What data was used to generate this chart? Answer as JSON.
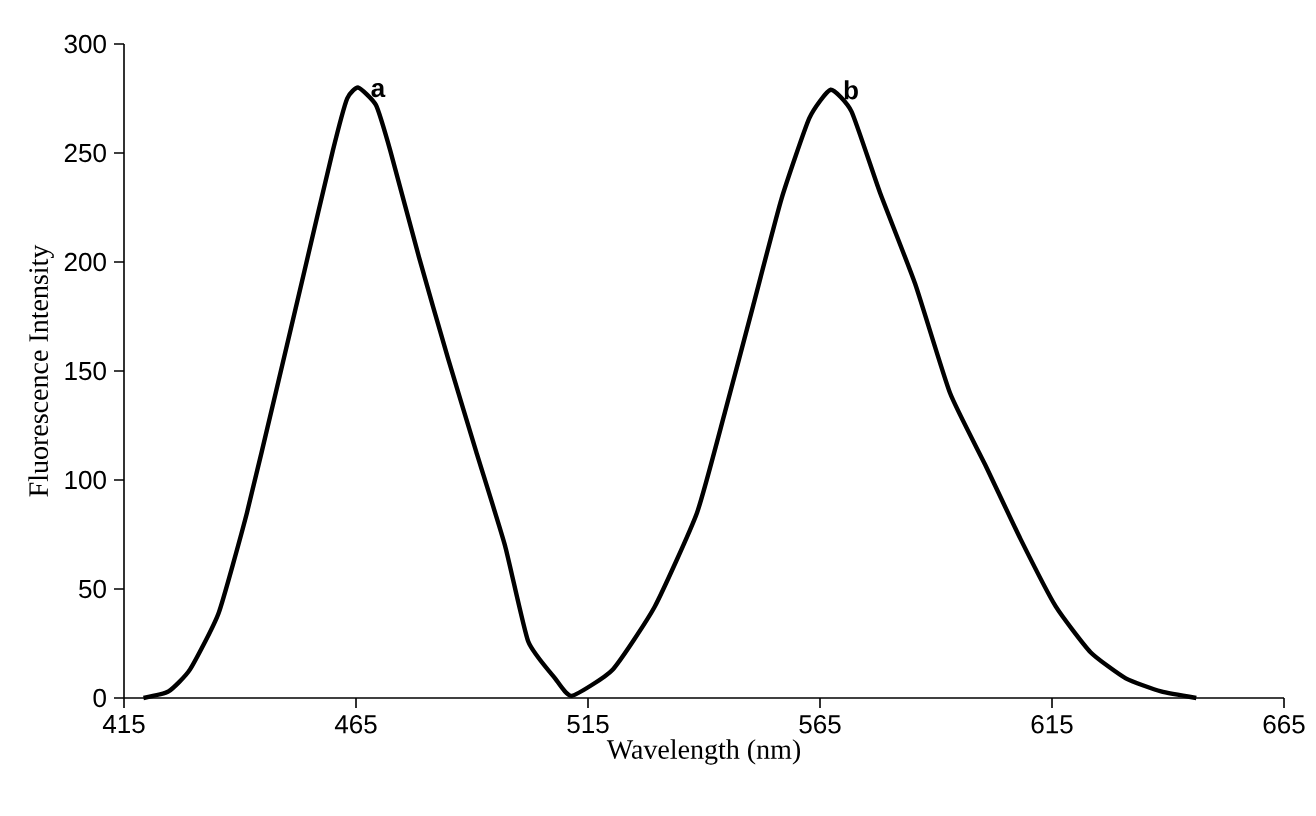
{
  "chart_data": {
    "type": "line",
    "xlabel": "Wavelength (nm)",
    "ylabel": "Fluorescence Intensity",
    "xlim": [
      415,
      665
    ],
    "ylim": [
      0,
      300
    ],
    "xticks": [
      415,
      465,
      515,
      565,
      615,
      665
    ],
    "yticks": [
      0,
      50,
      100,
      150,
      200,
      250,
      300
    ],
    "grid": false,
    "marker": "none",
    "line_style": "solid",
    "annotations": [
      {
        "text": "a",
        "x": 465.5,
        "y": 280
      },
      {
        "text": "b",
        "x": 567.3,
        "y": 279
      }
    ],
    "series": [
      {
        "color": "#000000",
        "x": [
          419.2,
          424.6,
          429.2,
          435.4,
          441.5,
          447.7,
          453.9,
          460.0,
          463.1,
          465.5,
          469.3,
          472.4,
          478.6,
          484.8,
          490.9,
          497.1,
          502.1,
          507.9,
          511.5,
          520.3,
          529.4,
          538.5,
          544.5,
          550.6,
          556.7,
          562.7,
          567.3,
          571.8,
          577.9,
          585.5,
          593.0,
          600.6,
          608.2,
          615.8,
          623.3,
          630.9,
          638.5,
          646.1
        ],
        "values": [
          0,
          3,
          13,
          39,
          85,
          140,
          196,
          251,
          275,
          280,
          272,
          251,
          202,
          156,
          113,
          70,
          26,
          9,
          1,
          13,
          42,
          85,
          131,
          180,
          229,
          266,
          279,
          269,
          232,
          190,
          140,
          107,
          73,
          42,
          21,
          9,
          3,
          0
        ]
      }
    ]
  }
}
